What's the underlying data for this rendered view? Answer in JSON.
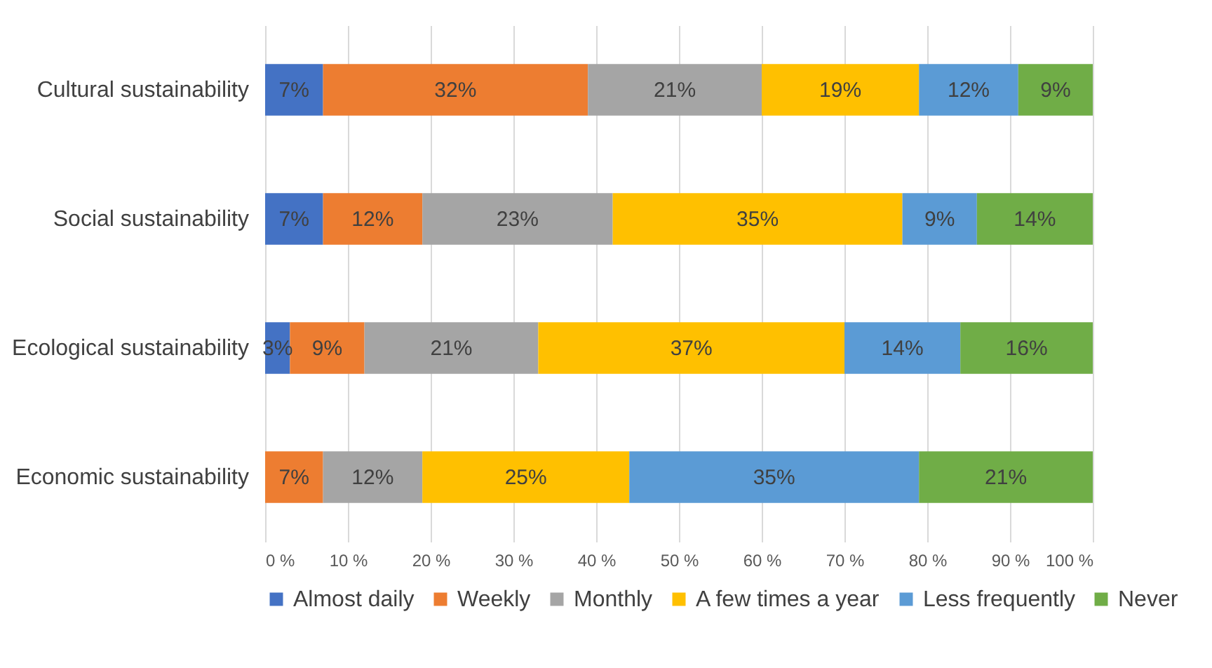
{
  "chart_data": {
    "type": "bar",
    "orientation": "horizontal",
    "stacked": true,
    "categories": [
      "Cultural sustainability",
      "Social sustainability",
      "Ecological sustainability",
      "Economic sustainability"
    ],
    "series": [
      {
        "name": "Almost daily",
        "color": "#4472c4",
        "values": [
          7,
          7,
          3,
          0
        ],
        "value_labels": [
          "7%",
          "7%",
          "3%",
          null
        ]
      },
      {
        "name": "Weekly",
        "color": "#ed7d31",
        "values": [
          32,
          12,
          9,
          7
        ],
        "value_labels": [
          "32%",
          "12%",
          "9%",
          "7%"
        ]
      },
      {
        "name": "Monthly",
        "color": "#a5a5a5",
        "values": [
          21,
          23,
          21,
          12
        ],
        "value_labels": [
          "21%",
          "23%",
          "21%",
          "12%"
        ]
      },
      {
        "name": "A few times a year",
        "color": "#ffc000",
        "values": [
          19,
          35,
          37,
          25
        ],
        "value_labels": [
          "19%",
          "35%",
          "37%",
          "25%"
        ]
      },
      {
        "name": "Less frequently",
        "color": "#5b9bd5",
        "values": [
          12,
          9,
          14,
          35
        ],
        "value_labels": [
          "12%",
          "9%",
          "14%",
          "35%"
        ]
      },
      {
        "name": "Never",
        "color": "#70ad47",
        "values": [
          9,
          14,
          16,
          21
        ],
        "value_labels": [
          "9%",
          "14%",
          "16%",
          "21%"
        ]
      }
    ],
    "xlim": [
      0,
      100
    ],
    "xticks": [
      {
        "value": 0,
        "label": "0 %"
      },
      {
        "value": 10,
        "label": "10 %"
      },
      {
        "value": 20,
        "label": "20 %"
      },
      {
        "value": 30,
        "label": "30 %"
      },
      {
        "value": 40,
        "label": "40 %"
      },
      {
        "value": 50,
        "label": "50 %"
      },
      {
        "value": 60,
        "label": "60 %"
      },
      {
        "value": 70,
        "label": "70 %"
      },
      {
        "value": 80,
        "label": "80 %"
      },
      {
        "value": 90,
        "label": "90 %"
      },
      {
        "value": 100,
        "label": "100 %"
      }
    ],
    "grid": "x",
    "legend": "bottom"
  }
}
